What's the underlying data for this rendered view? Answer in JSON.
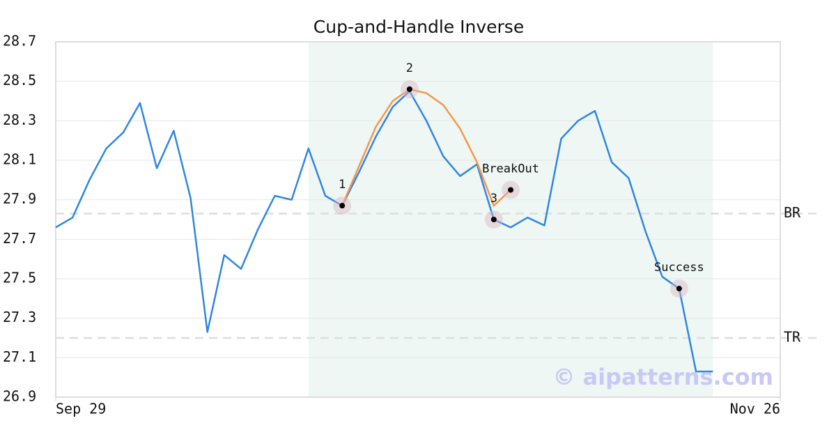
{
  "chart_data": {
    "type": "line",
    "title": "Cup-and-Handle Inverse",
    "x": [
      0,
      1,
      2,
      3,
      4,
      5,
      6,
      7,
      8,
      9,
      10,
      11,
      12,
      13,
      14,
      15,
      16,
      17,
      18,
      19,
      20,
      21,
      22,
      23,
      24,
      25,
      26,
      27,
      28,
      29,
      30,
      31,
      32,
      33,
      34,
      35,
      36,
      37,
      38,
      39
    ],
    "series": [
      {
        "color": "#2f86e0",
        "values": [
          27.76,
          27.81,
          28.0,
          28.16,
          28.24,
          28.39,
          28.06,
          28.25,
          27.91,
          27.23,
          27.62,
          27.55,
          27.75,
          27.92,
          27.9,
          28.16,
          27.92,
          27.87,
          28.04,
          28.22,
          28.37,
          28.45,
          28.3,
          28.12,
          28.02,
          28.08,
          27.8,
          27.76,
          27.81,
          27.77,
          28.21,
          28.3,
          28.35,
          28.09,
          28.01,
          27.74,
          27.51,
          27.45,
          27.03,
          27.03
        ]
      },
      {
        "color": "#f5974a",
        "x": [
          17,
          18,
          19,
          20,
          21,
          22,
          23,
          24,
          25,
          26,
          27
        ],
        "values": [
          27.87,
          28.07,
          28.27,
          28.4,
          28.46,
          28.44,
          28.38,
          28.26,
          28.09,
          27.87,
          27.95
        ]
      }
    ],
    "markers": [
      {
        "x": 17,
        "y": 27.87,
        "label": "1"
      },
      {
        "x": 21,
        "y": 28.46,
        "label": "2"
      },
      {
        "x": 26,
        "y": 27.8,
        "label": "3"
      },
      {
        "x": 27,
        "y": 27.95,
        "label": "BreakOut"
      },
      {
        "x": 37,
        "y": 27.45,
        "label": "Success"
      }
    ],
    "levels": [
      {
        "value": 27.83,
        "label": "BR"
      },
      {
        "value": 27.2,
        "label": "TR"
      }
    ],
    "highlight": [
      15,
      39
    ],
    "xlim": [
      0,
      43
    ],
    "xticks": [
      {
        "value": 0,
        "label": "Sep 29"
      },
      {
        "value": 43,
        "label": "Nov 26"
      }
    ],
    "ylim": [
      26.9,
      28.7
    ],
    "yticks": [
      26.9,
      27.1,
      27.3,
      27.5,
      27.7,
      27.9,
      28.1,
      28.3,
      28.5,
      28.7
    ],
    "grid": true,
    "watermark": "© aipatterns.com"
  }
}
